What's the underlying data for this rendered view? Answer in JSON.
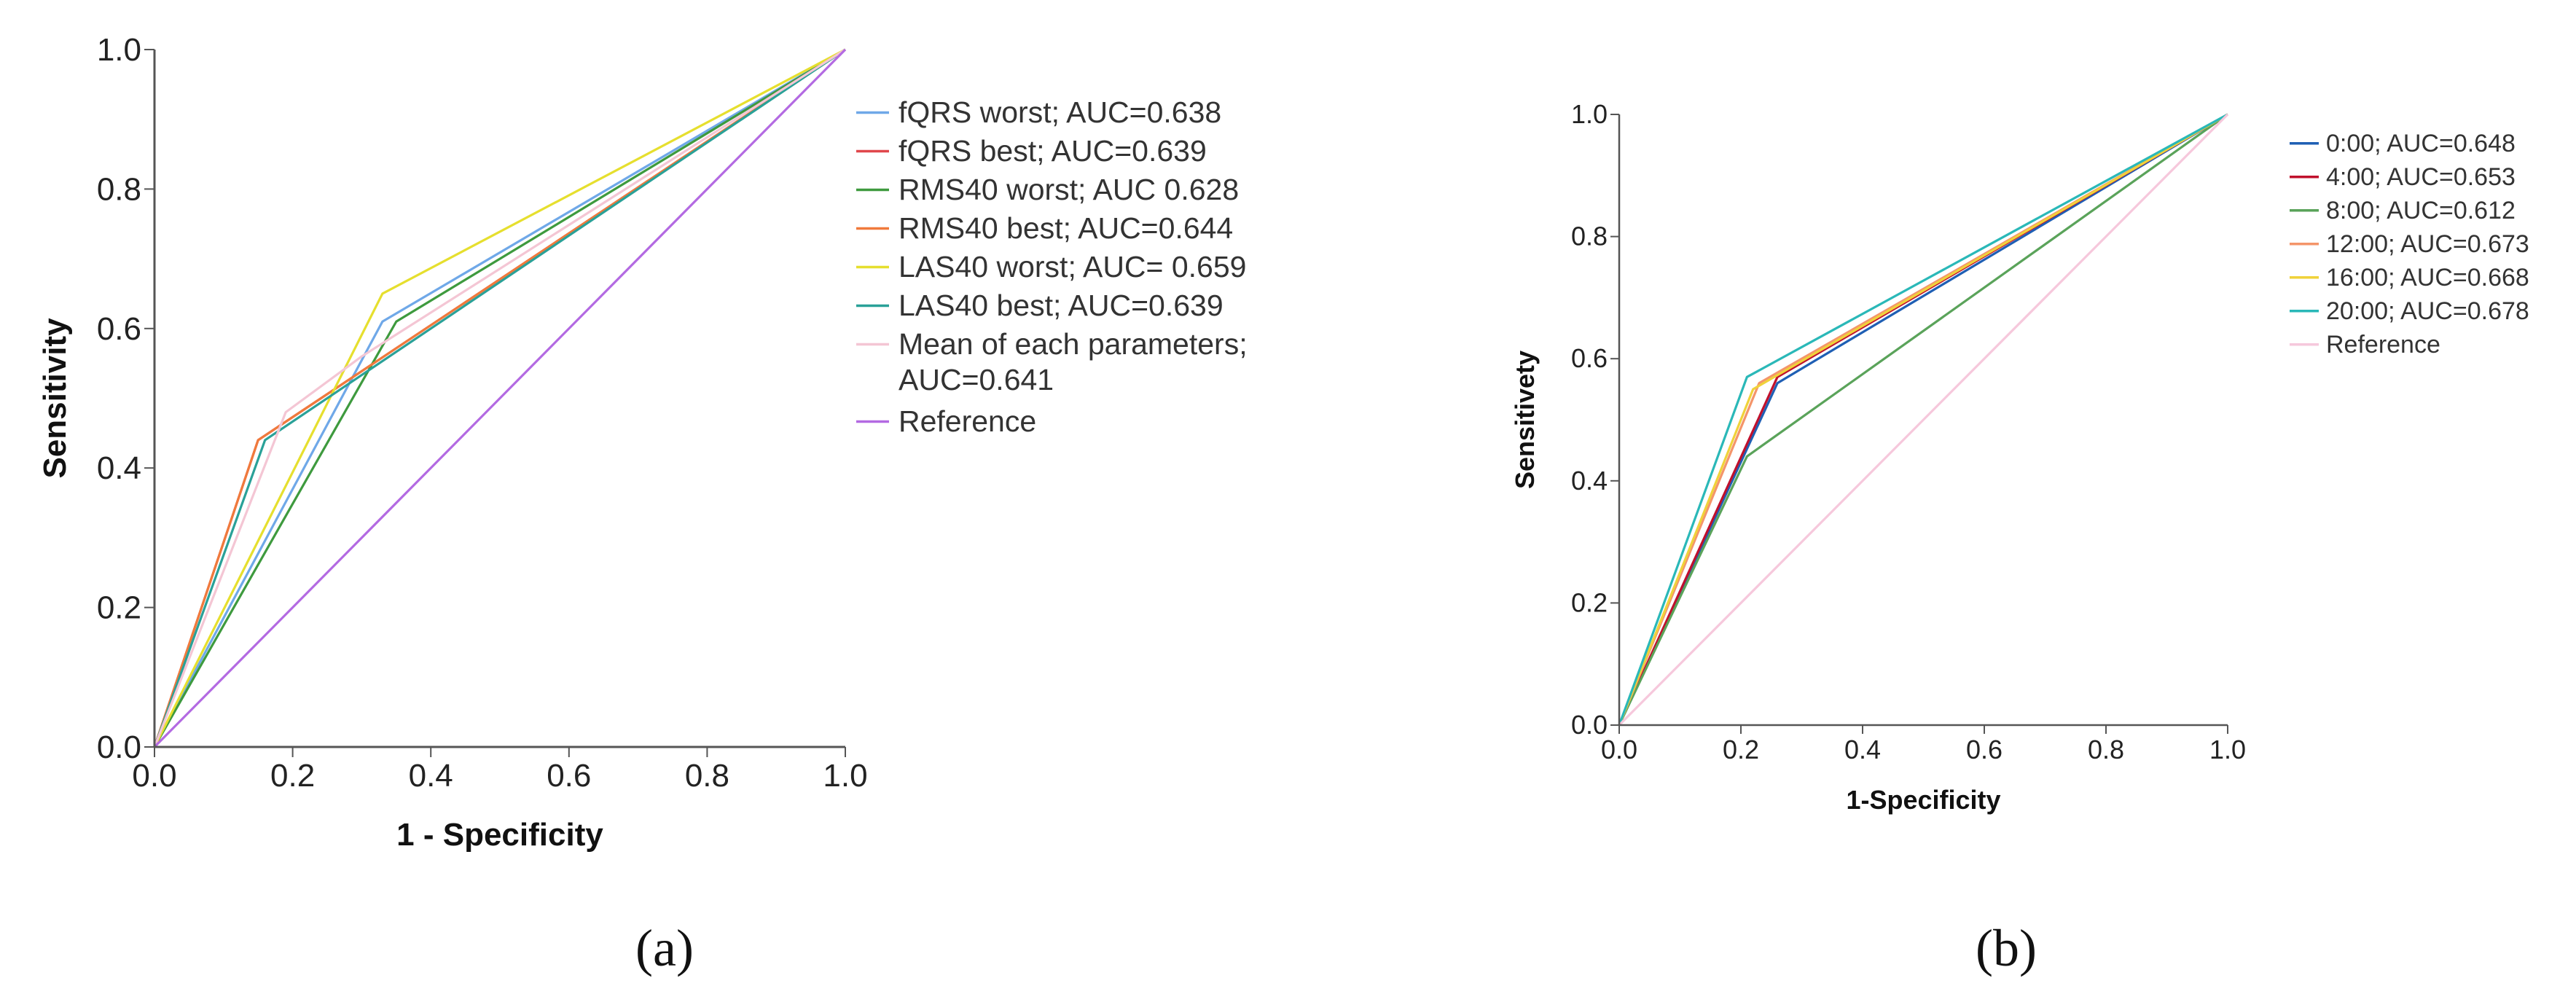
{
  "chart_data": [
    {
      "type": "line",
      "panel_label": "(a)",
      "xlabel": "1 - Specificity",
      "ylabel": "Sensitivity",
      "xlim": [
        0,
        1
      ],
      "ylim": [
        0,
        1
      ],
      "xticks": [
        "0.0",
        "0.2",
        "0.4",
        "0.6",
        "0.8",
        "1.0"
      ],
      "yticks": [
        "0.0",
        "0.2",
        "0.4",
        "0.6",
        "0.8",
        "1.0"
      ],
      "grid": false,
      "legend_position": "right",
      "series": [
        {
          "name": "fQRS worst; AUC=0.638",
          "color": "#6fa8e8",
          "x": [
            0,
            0.33,
            1
          ],
          "y": [
            0,
            0.61,
            1
          ]
        },
        {
          "name": "fQRS best; AUC=0.639",
          "color": "#e0474c",
          "x": [
            0,
            0.15,
            1
          ],
          "y": [
            0,
            0.44,
            1
          ]
        },
        {
          "name": "RMS40 worst; AUC 0.628",
          "color": "#3e9a3e",
          "x": [
            0,
            0.35,
            1
          ],
          "y": [
            0,
            0.61,
            1
          ]
        },
        {
          "name": "RMS40 best; AUC=0.644",
          "color": "#f07a3c",
          "x": [
            0,
            0.15,
            1
          ],
          "y": [
            0,
            0.44,
            1
          ]
        },
        {
          "name": "LAS40 worst; AUC= 0.659",
          "color": "#e6df2e",
          "x": [
            0,
            0.33,
            1
          ],
          "y": [
            0,
            0.65,
            1
          ]
        },
        {
          "name": "LAS40 best; AUC=0.639",
          "color": "#2aa198",
          "x": [
            0,
            0.16,
            1
          ],
          "y": [
            0,
            0.44,
            1
          ]
        },
        {
          "name": "Mean of each parameters;\nAUC=0.641",
          "color": "#f4c6d4",
          "x": [
            0,
            0.19,
            0.3,
            1
          ],
          "y": [
            0,
            0.48,
            0.56,
            1
          ]
        },
        {
          "name": "Reference",
          "color": "#b36ae2",
          "x": [
            0,
            1
          ],
          "y": [
            0,
            1
          ]
        }
      ]
    },
    {
      "type": "line",
      "panel_label": "(b)",
      "xlabel": "1-Specificity",
      "ylabel": "Sensitivety",
      "xlim": [
        0,
        1
      ],
      "ylim": [
        0,
        1
      ],
      "xticks": [
        "0.0",
        "0.2",
        "0.4",
        "0.6",
        "0.8",
        "1.0"
      ],
      "yticks": [
        "0.0",
        "0.2",
        "0.4",
        "0.6",
        "0.8",
        "1.0"
      ],
      "grid": false,
      "legend_position": "right",
      "series": [
        {
          "name": "0:00; AUC=0.648",
          "color": "#1f5fb4",
          "x": [
            0,
            0.26,
            1
          ],
          "y": [
            0,
            0.56,
            1
          ]
        },
        {
          "name": "4:00; AUC=0.653",
          "color": "#c0102c",
          "x": [
            0,
            0.26,
            1
          ],
          "y": [
            0,
            0.57,
            1
          ]
        },
        {
          "name": "8:00; AUC=0.612",
          "color": "#5aa35a",
          "x": [
            0,
            0.21,
            1
          ],
          "y": [
            0,
            0.44,
            1
          ]
        },
        {
          "name": "12:00; AUC=0.673",
          "color": "#f4956a",
          "x": [
            0,
            0.23,
            1
          ],
          "y": [
            0,
            0.56,
            1
          ]
        },
        {
          "name": "16:00; AUC=0.668",
          "color": "#f0d23a",
          "x": [
            0,
            0.22,
            1
          ],
          "y": [
            0,
            0.55,
            1
          ]
        },
        {
          "name": "20:00; AUC=0.678",
          "color": "#2ab8b8",
          "x": [
            0,
            0.21,
            1
          ],
          "y": [
            0,
            0.57,
            1
          ]
        },
        {
          "name": "Reference",
          "color": "#f6c8dc",
          "x": [
            0,
            1
          ],
          "y": [
            0,
            1
          ]
        }
      ]
    }
  ]
}
